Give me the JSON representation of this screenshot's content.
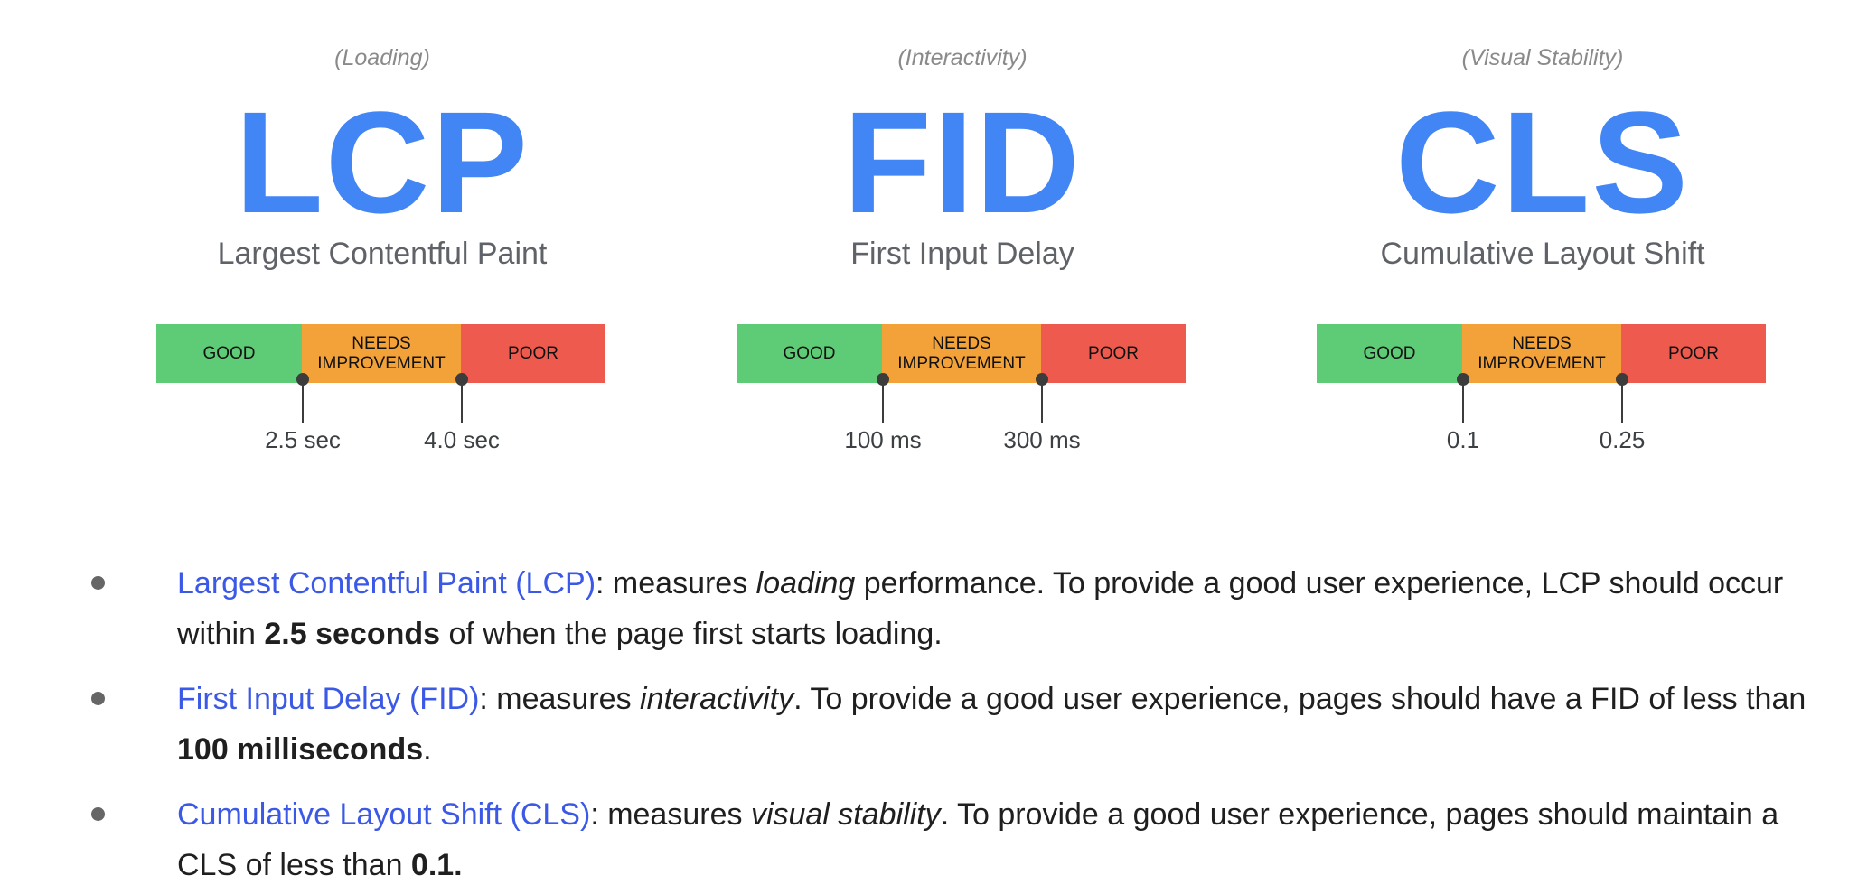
{
  "metrics": [
    {
      "category": "(Loading)",
      "abbr": "LCP",
      "name": "Largest Contentful Paint",
      "segments": {
        "good": "GOOD",
        "needs_line1": "NEEDS",
        "needs_line2": "IMPROVEMENT",
        "poor": "POOR"
      },
      "thresholds": [
        "2.5 sec",
        "4.0 sec"
      ]
    },
    {
      "category": "(Interactivity)",
      "abbr": "FID",
      "name": "First Input Delay",
      "segments": {
        "good": "GOOD",
        "needs_line1": "NEEDS",
        "needs_line2": "IMPROVEMENT",
        "poor": "POOR"
      },
      "thresholds": [
        "100 ms",
        "300 ms"
      ]
    },
    {
      "category": "(Visual Stability)",
      "abbr": "CLS",
      "name": "Cumulative Layout Shift",
      "segments": {
        "good": "GOOD",
        "needs_line1": "NEEDS",
        "needs_line2": "IMPROVEMENT",
        "poor": "POOR"
      },
      "thresholds": [
        "0.1",
        "0.25"
      ]
    }
  ],
  "colors": {
    "accent": "#4285f4",
    "link": "#3b59e6",
    "good": "#5ecb76",
    "needs_improvement": "#f3a239",
    "poor": "#ee5a4d"
  },
  "bullets": [
    {
      "link": "Largest Contentful Paint (LCP)",
      "t1": ": measures ",
      "em": "loading",
      "t2": " performance. To provide a good user experience, LCP should occur within ",
      "strong": "2.5 seconds",
      "t3": " of when the page first starts loading."
    },
    {
      "link": "First Input Delay (FID)",
      "t1": ": measures ",
      "em": "interactivity",
      "t2": ". To provide a good user experience, pages should have a FID of less than ",
      "strong": "100 milliseconds",
      "t3": "."
    },
    {
      "link": "Cumulative Layout Shift (CLS)",
      "t1": ": measures ",
      "em": "visual stability",
      "t2": ". To provide a good user experience, pages should maintain a CLS of less than ",
      "strong": "0.1.",
      "t3": ""
    }
  ]
}
